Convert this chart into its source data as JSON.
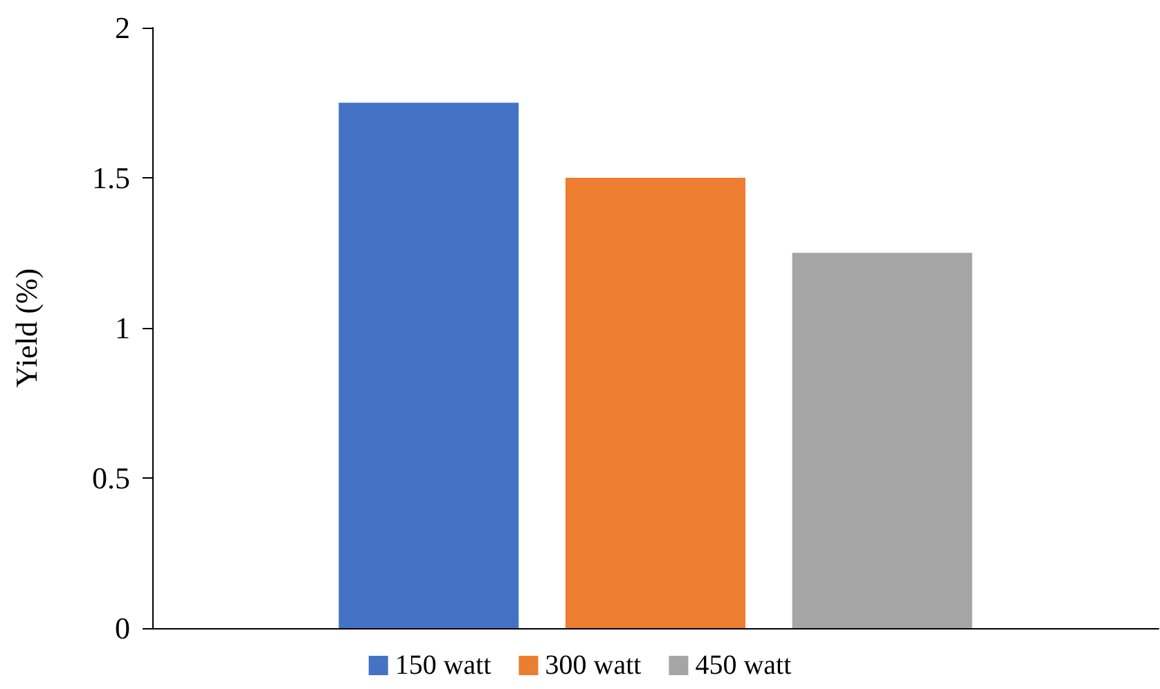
{
  "chart_data": {
    "type": "bar",
    "ylabel": "Yield (%)",
    "categories": [
      null
    ],
    "series": [
      {
        "name": "150 watt",
        "color": "#4472c4",
        "values": [
          1.75
        ]
      },
      {
        "name": "300 watt",
        "color": "#ed7d31",
        "values": [
          1.5
        ]
      },
      {
        "name": "450 watt",
        "color": "#a5a5a5",
        "values": [
          1.25
        ]
      }
    ],
    "ylim": [
      0,
      2
    ],
    "yticks": [
      0,
      0.5,
      1,
      1.5,
      2
    ],
    "grid": false,
    "legend": "bottom"
  }
}
